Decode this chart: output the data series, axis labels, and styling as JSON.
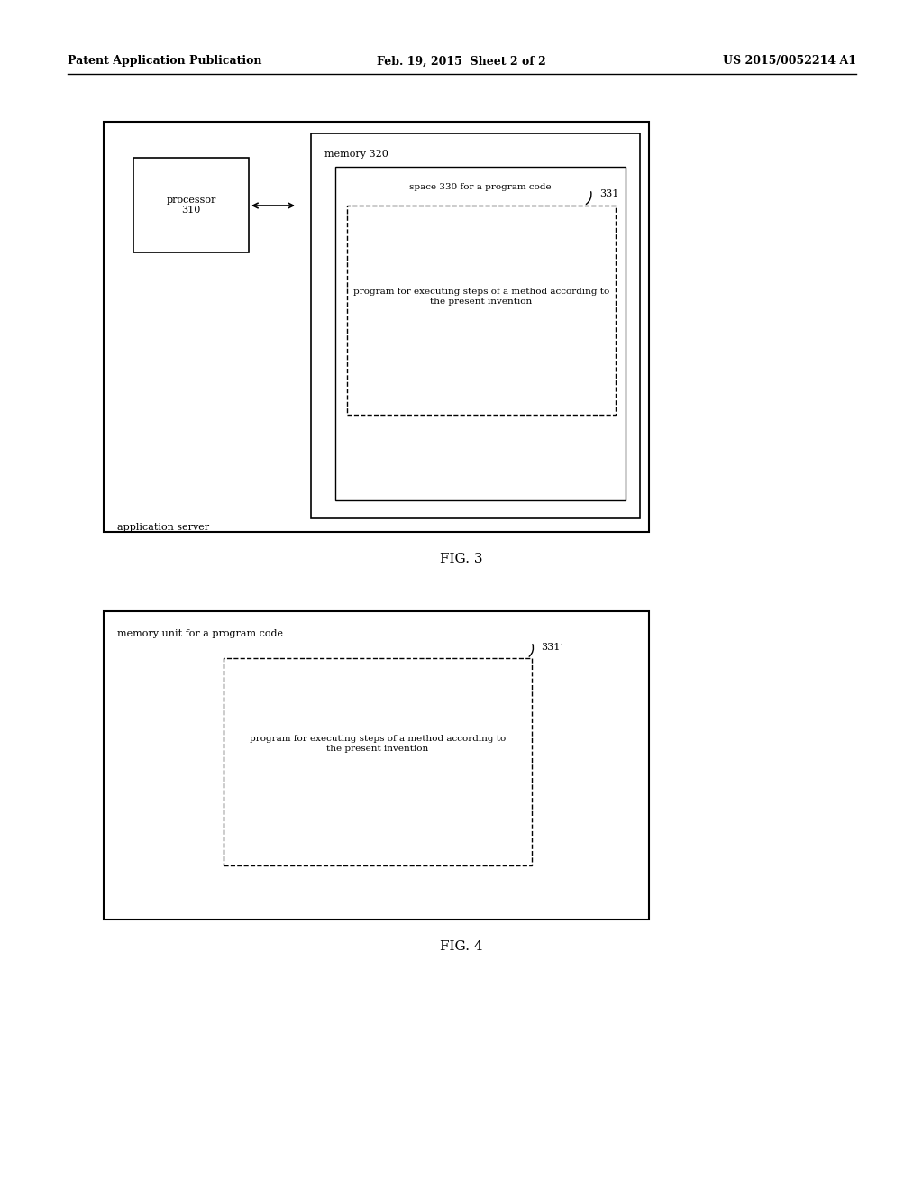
{
  "bg_color": "#ffffff",
  "header_left": "Patent Application Publication",
  "header_mid": "Feb. 19, 2015  Sheet 2 of 2",
  "header_right": "US 2015/0052214 A1",
  "fig3_label": "FIG. 3",
  "fig4_label": "FIG. 4",
  "fig3": {
    "app_server_label": "application server",
    "processor_label": "processor\n310",
    "memory_label": "memory 320",
    "space_label": "space 330 for a program code",
    "dashed_label": "program for executing steps of a method according to\nthe present invention",
    "ref331_label": "331"
  },
  "fig4": {
    "memory_label": "memory unit for a program code",
    "dashed_label": "program for executing steps of a method according to\nthe present invention",
    "ref331p_label": "331’"
  }
}
